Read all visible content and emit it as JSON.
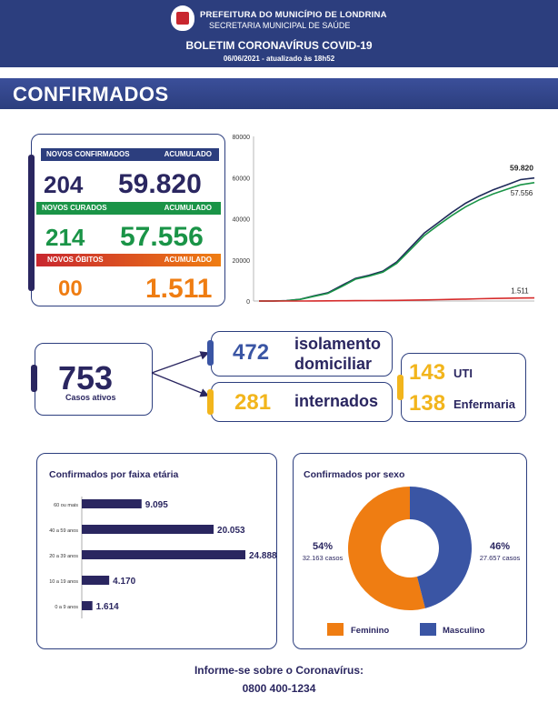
{
  "header": {
    "line1": "PREFEITURA DO MUNICÍPIO DE LONDRINA",
    "line2": "SECRETARIA MUNICIPAL DE SAÚDE",
    "title": "BOLETIM CORONAVÍRUS COVID-19",
    "date": "06/06/2021 - atualizado às 18h52"
  },
  "section_title": "CONFIRMADOS",
  "summary": {
    "confirmados": {
      "label": "NOVOS CONFIRMADOS",
      "acc_label": "ACUMULADO",
      "novos": "204",
      "acumulado": "59.820",
      "color": "#2c3e7e"
    },
    "curados": {
      "label": "NOVOS CURADOS",
      "acc_label": "ACUMULADO",
      "novos": "214",
      "acumulado": "57.556",
      "color": "#1a9447"
    },
    "obitos": {
      "label": "NOVOS ÓBITOS",
      "acc_label": "ACUMULADO",
      "novos": "00",
      "acumulado": "1.511",
      "color": "#ef7d12"
    }
  },
  "chart_data": [
    {
      "type": "line",
      "title": "",
      "ylim": [
        0,
        80000
      ],
      "yticks": [
        "80000",
        "60000",
        "40000",
        "20000",
        "0"
      ],
      "x": [
        0,
        1,
        2,
        3,
        4,
        5,
        6,
        7,
        8,
        9,
        10,
        11,
        12,
        13,
        14,
        15,
        16,
        17,
        18,
        19,
        20
      ],
      "series": [
        {
          "name": "Confirmados",
          "color": "#1f2a5a",
          "values": [
            0,
            0,
            200,
            900,
            2500,
            4000,
            7500,
            11000,
            12500,
            14500,
            19000,
            26000,
            33000,
            38000,
            43000,
            47500,
            51000,
            54000,
            56500,
            59000,
            59820
          ]
        },
        {
          "name": "Curados",
          "color": "#1a9447",
          "values": [
            0,
            0,
            150,
            800,
            2300,
            3700,
            7000,
            10600,
            12100,
            14000,
            18300,
            25000,
            31800,
            36800,
            41500,
            45800,
            49200,
            52000,
            54300,
            56500,
            57556
          ]
        },
        {
          "name": "Óbitos",
          "color": "#d62b2b",
          "values": [
            0,
            0,
            5,
            20,
            50,
            80,
            120,
            170,
            210,
            250,
            310,
            400,
            520,
            650,
            800,
            950,
            1100,
            1250,
            1380,
            1470,
            1511
          ]
        }
      ],
      "end_labels": {
        "confirmados": "59.820",
        "curados": "57.556",
        "obitos": "1.511"
      }
    },
    {
      "type": "bar",
      "title": "Confirmados por faixa etária",
      "categories": [
        "60 ou mais",
        "40 a 59 anos",
        "20 a 39 anos",
        "10 a 19 anos",
        "0 a 9 anos"
      ],
      "values": [
        9095,
        20053,
        24888,
        4170,
        1614
      ],
      "value_labels": [
        "9.095",
        "20.053",
        "24.888",
        "4.170",
        "1.614"
      ],
      "color": "#2a2660"
    },
    {
      "type": "pie",
      "title": "Confirmados por sexo",
      "categories": [
        "Feminino",
        "Masculino"
      ],
      "values": [
        54,
        46
      ],
      "percent_labels": [
        "54%",
        "46%"
      ],
      "case_labels": [
        "32.163 casos",
        "27.657 casos"
      ],
      "colors": [
        "#ef7d12",
        "#3a55a4"
      ]
    }
  ],
  "ativos": {
    "num": "753",
    "label": "Casos ativos"
  },
  "isolamento": {
    "num": "472",
    "label1": "isolamento",
    "label2": "domiciliar"
  },
  "internados": {
    "num": "281",
    "label": "internados"
  },
  "uti": {
    "num": "143",
    "label": "UTI"
  },
  "enfermaria": {
    "num": "138",
    "label": "Enfermaria"
  },
  "footer": {
    "info": "Informe-se sobre o Coronavírus:",
    "phone": "0800 400-1234"
  }
}
